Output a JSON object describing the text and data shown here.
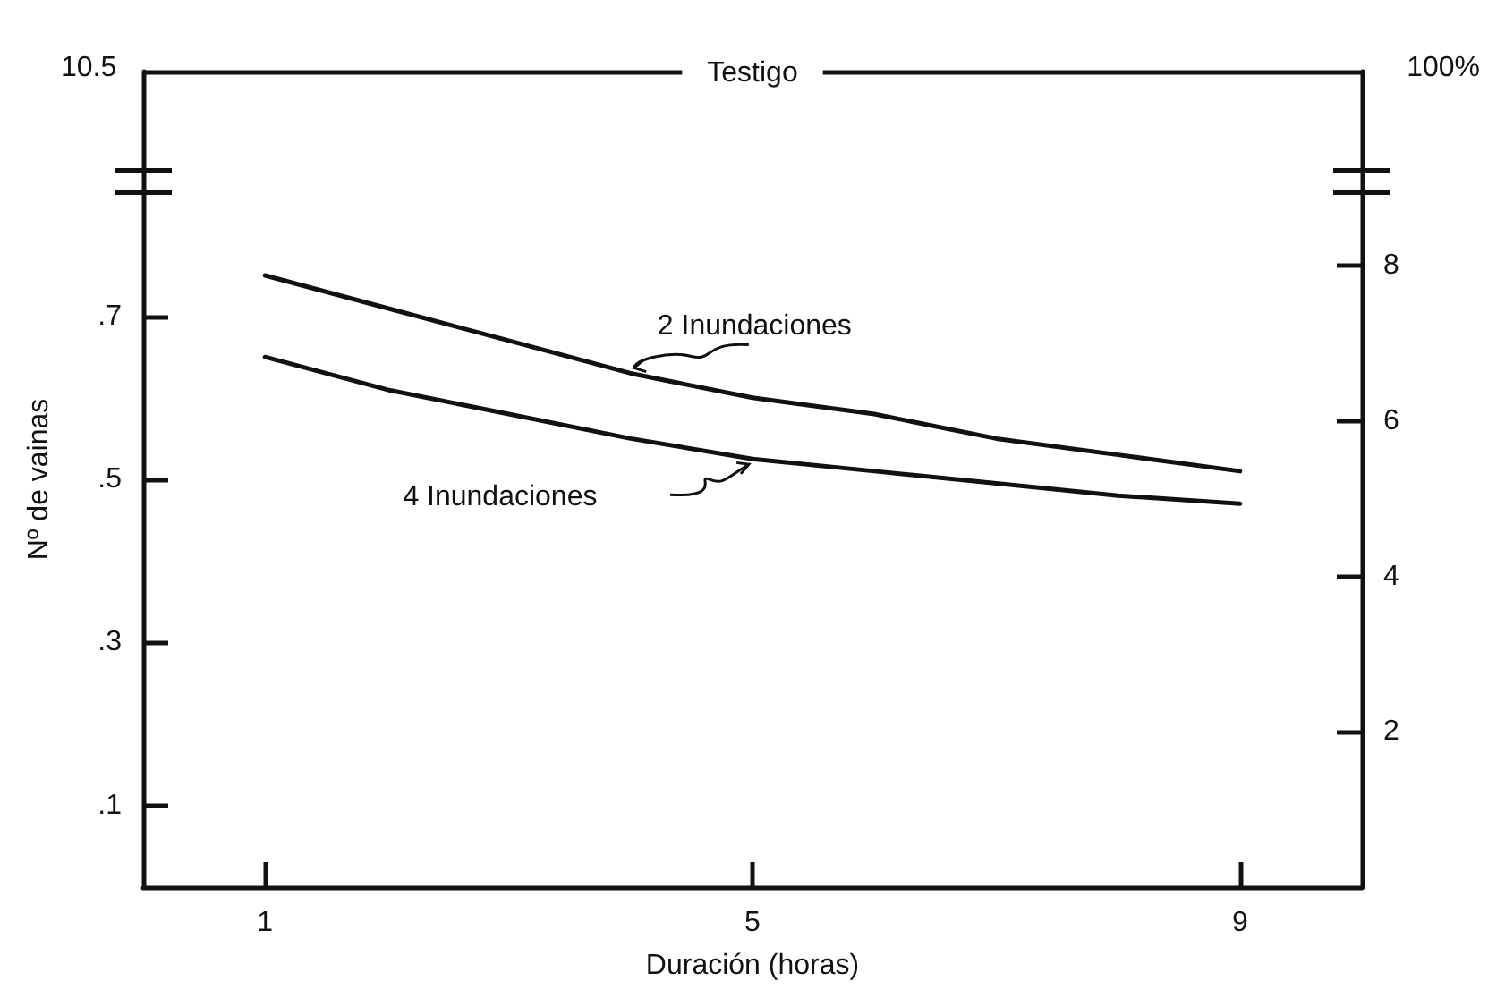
{
  "chart_data": {
    "type": "line",
    "xlabel": "Duración (horas)",
    "ylabel": "Nº de vainas",
    "x": [
      1,
      2,
      3,
      4,
      5,
      6,
      7,
      8,
      9
    ],
    "series": [
      {
        "name": "2 Inundaciones",
        "color": "#111111",
        "values": [
          0.75,
          0.71,
          0.67,
          0.63,
          0.6,
          0.58,
          0.55,
          0.53,
          0.51
        ]
      },
      {
        "name": "4 Inundaciones",
        "color": "#111111",
        "values": [
          0.65,
          0.61,
          0.58,
          0.55,
          0.525,
          0.51,
          0.495,
          0.48,
          0.47
        ]
      }
    ],
    "xlim": [
      0,
      10
    ],
    "xticks": [
      1,
      5,
      9
    ],
    "ylim": [
      0,
      1
    ],
    "yticks": [
      {
        "value": 0.1,
        "label": ".1"
      },
      {
        "value": 0.3,
        "label": ".3"
      },
      {
        "value": 0.5,
        "label": ".5"
      },
      {
        "value": 0.7,
        "label": ".7"
      }
    ],
    "y2lim": [
      0,
      10.5
    ],
    "y2ticks": [
      2,
      4,
      6,
      8
    ],
    "annotations": [
      "10.5",
      "100%"
    ],
    "ref_lines": [
      {
        "axis": "y",
        "value": 1,
        "label": "Testigo",
        "color": "#111111"
      }
    ],
    "grid": false,
    "legend": false,
    "marker": "none",
    "line_style": "solid"
  }
}
